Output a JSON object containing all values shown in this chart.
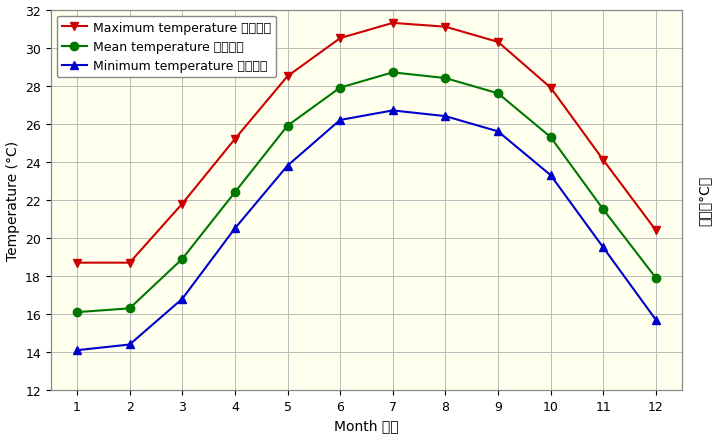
{
  "months": [
    1,
    2,
    3,
    4,
    5,
    6,
    7,
    8,
    9,
    10,
    11,
    12
  ],
  "max_temp": [
    18.7,
    18.7,
    21.8,
    25.2,
    28.5,
    30.5,
    31.3,
    31.1,
    30.3,
    27.9,
    24.1,
    20.4
  ],
  "mean_temp": [
    16.1,
    16.3,
    18.9,
    22.4,
    25.9,
    27.9,
    28.7,
    28.4,
    27.6,
    25.3,
    21.5,
    17.9
  ],
  "min_temp": [
    14.1,
    14.4,
    16.8,
    20.5,
    23.8,
    26.2,
    26.7,
    26.4,
    25.6,
    23.3,
    19.5,
    15.7
  ],
  "max_color": "#cc0000",
  "mean_color": "#007700",
  "min_color": "#0000cc",
  "fig_bg_color": "#ffffff",
  "plot_bg_color": "#ffffee",
  "border_color": "#888888",
  "grid_color": "#bbbbbb",
  "ylabel_left": "Temperature (°C)",
  "ylabel_right": "氣溫（°C）",
  "xlabel": "Month 月份",
  "ylim": [
    12,
    32
  ],
  "yticks": [
    12,
    14,
    16,
    18,
    20,
    22,
    24,
    26,
    28,
    30,
    32
  ],
  "legend_max": "Maximum temperature 最高氣溫",
  "legend_mean": "Mean temperature 平均氣溫",
  "legend_min": "Minimum temperature 最低氣溫",
  "axis_fontsize": 10,
  "tick_fontsize": 9,
  "legend_fontsize": 9
}
